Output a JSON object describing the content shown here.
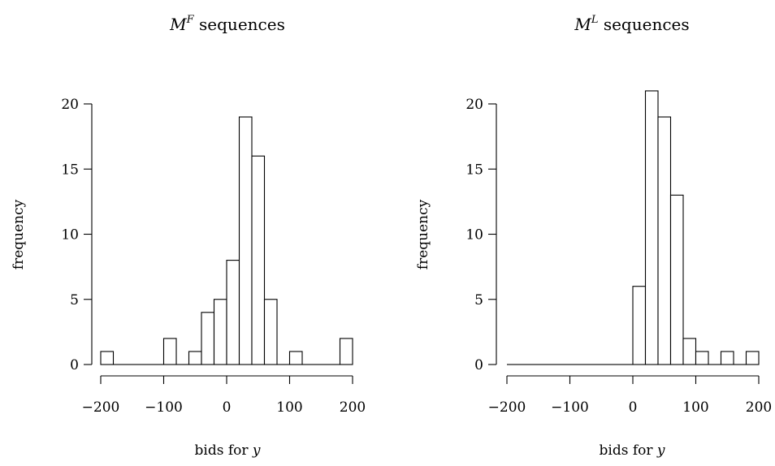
{
  "chart_data": [
    {
      "type": "bar",
      "title_base": "M",
      "title_sup": "F",
      "title_rest": " sequences",
      "xlabel_prefix": "bids for ",
      "xlabel_var": "y",
      "ylabel": "frequency",
      "xlim": [
        -200,
        200
      ],
      "ylim": [
        0,
        20
      ],
      "x_ticks": [
        -200,
        -100,
        0,
        100,
        200
      ],
      "x_tick_labels": [
        "−200",
        "−100",
        "0",
        "100",
        "200"
      ],
      "y_ticks": [
        0,
        5,
        10,
        15,
        20
      ],
      "y_tick_labels": [
        "0",
        "5",
        "10",
        "15",
        "20"
      ],
      "bin_width": 20,
      "bins": [
        {
          "x0": -200,
          "x1": -180,
          "count": 1
        },
        {
          "x0": -180,
          "x1": -160,
          "count": 0
        },
        {
          "x0": -160,
          "x1": -140,
          "count": 0
        },
        {
          "x0": -140,
          "x1": -120,
          "count": 0
        },
        {
          "x0": -120,
          "x1": -100,
          "count": 0
        },
        {
          "x0": -100,
          "x1": -80,
          "count": 2
        },
        {
          "x0": -80,
          "x1": -60,
          "count": 0
        },
        {
          "x0": -60,
          "x1": -40,
          "count": 1
        },
        {
          "x0": -40,
          "x1": -20,
          "count": 4
        },
        {
          "x0": -20,
          "x1": 0,
          "count": 5
        },
        {
          "x0": 0,
          "x1": 20,
          "count": 8
        },
        {
          "x0": 20,
          "x1": 40,
          "count": 19
        },
        {
          "x0": 40,
          "x1": 60,
          "count": 16
        },
        {
          "x0": 60,
          "x1": 80,
          "count": 5
        },
        {
          "x0": 80,
          "x1": 100,
          "count": 0
        },
        {
          "x0": 100,
          "x1": 120,
          "count": 1
        },
        {
          "x0": 120,
          "x1": 140,
          "count": 0
        },
        {
          "x0": 140,
          "x1": 160,
          "count": 0
        },
        {
          "x0": 160,
          "x1": 180,
          "count": 0
        },
        {
          "x0": 180,
          "x1": 200,
          "count": 2
        }
      ]
    },
    {
      "type": "bar",
      "title_base": "M",
      "title_sup": "L",
      "title_rest": " sequences",
      "xlabel_prefix": "bids for ",
      "xlabel_var": "y",
      "ylabel": "frequency",
      "xlim": [
        -200,
        200
      ],
      "ylim": [
        0,
        20
      ],
      "x_ticks": [
        -200,
        -100,
        0,
        100,
        200
      ],
      "x_tick_labels": [
        "−200",
        "−100",
        "0",
        "100",
        "200"
      ],
      "y_ticks": [
        0,
        5,
        10,
        15,
        20
      ],
      "y_tick_labels": [
        "0",
        "5",
        "10",
        "15",
        "20"
      ],
      "bin_width": 20,
      "bins": [
        {
          "x0": -200,
          "x1": -180,
          "count": 0
        },
        {
          "x0": -180,
          "x1": -160,
          "count": 0
        },
        {
          "x0": -160,
          "x1": -140,
          "count": 0
        },
        {
          "x0": -140,
          "x1": -120,
          "count": 0
        },
        {
          "x0": -120,
          "x1": -100,
          "count": 0
        },
        {
          "x0": -100,
          "x1": -80,
          "count": 0
        },
        {
          "x0": -80,
          "x1": -60,
          "count": 0
        },
        {
          "x0": -60,
          "x1": -40,
          "count": 0
        },
        {
          "x0": -40,
          "x1": -20,
          "count": 0
        },
        {
          "x0": -20,
          "x1": 0,
          "count": 0
        },
        {
          "x0": 0,
          "x1": 20,
          "count": 6
        },
        {
          "x0": 20,
          "x1": 40,
          "count": 21
        },
        {
          "x0": 40,
          "x1": 60,
          "count": 19
        },
        {
          "x0": 60,
          "x1": 80,
          "count": 13
        },
        {
          "x0": 80,
          "x1": 100,
          "count": 2
        },
        {
          "x0": 100,
          "x1": 120,
          "count": 1
        },
        {
          "x0": 120,
          "x1": 140,
          "count": 0
        },
        {
          "x0": 140,
          "x1": 160,
          "count": 1
        },
        {
          "x0": 160,
          "x1": 180,
          "count": 0
        },
        {
          "x0": 180,
          "x1": 200,
          "count": 1
        }
      ]
    }
  ]
}
